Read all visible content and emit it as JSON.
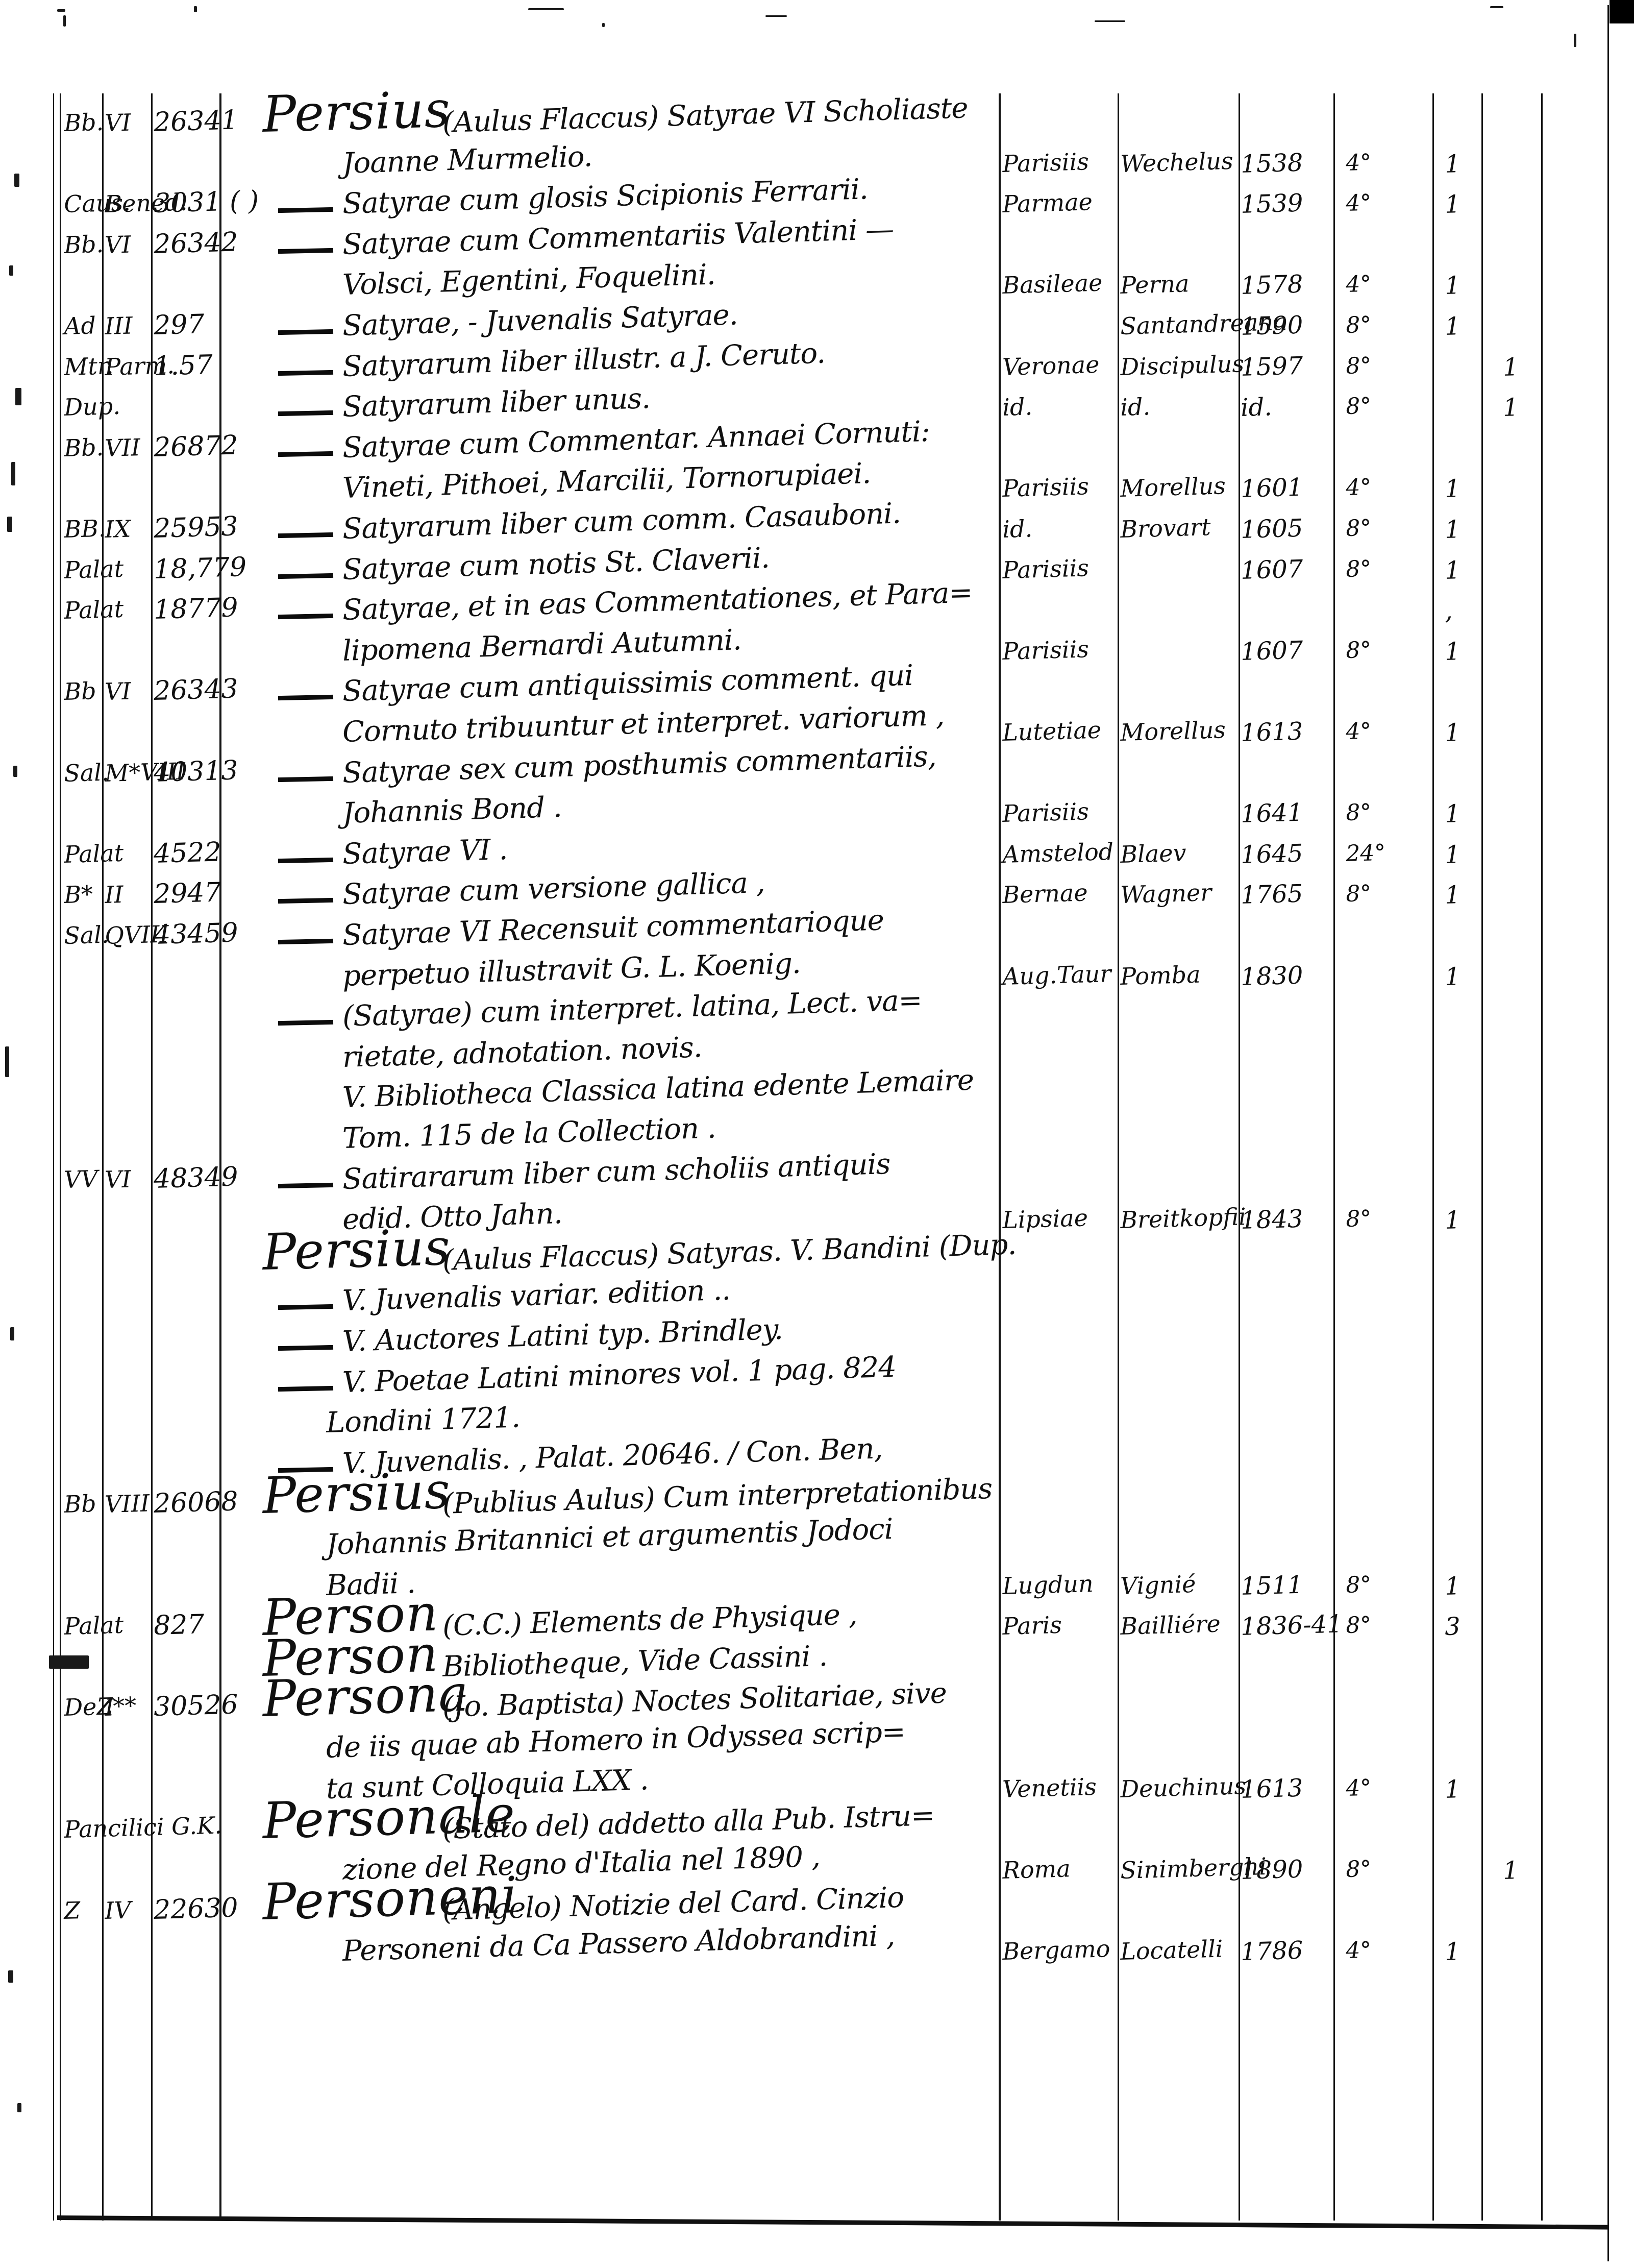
{
  "page": {
    "kind": "handwritten-library-catalog-scan",
    "ink_color": "#101010",
    "paper_color": "#ffffff",
    "rows": [
      {
        "head": "Persius",
        "title": "(Aulus Flaccus) Satyrae VI Scholiaste",
        "c1": "Bb.",
        "c2": "VI",
        "c3": "26341"
      },
      {
        "title": "Joanne Murmelio.",
        "place": "Parisiis",
        "pub": "Wechelus",
        "year": "1538",
        "fmt": "4°",
        "n1": "1"
      },
      {
        "title": "Satyrae cum glosis Scipionis Ferrarii.",
        "dash": true,
        "c1": "Caus.",
        "c2": "Bened.",
        "c3": "3031 ( )",
        "place": "Parmae",
        "year": "1539",
        "fmt": "4°",
        "n1": "1"
      },
      {
        "title": "Satyrae cum Commentariis Valentini —",
        "dash": true,
        "c1": "Bb.",
        "c2": "VI",
        "c3": "26342"
      },
      {
        "title": "Volsci, Egentini, Foquelini.",
        "place": "Basileae",
        "pub": "Perna",
        "year": "1578",
        "fmt": "4°",
        "n1": "1"
      },
      {
        "title": "Satyrae, - Juvenalis Satyrae.",
        "dash": true,
        "c1": "Ad",
        "c2": "III",
        "c3": "297",
        "pub": "Santandreana",
        "year": "1590",
        "fmt": "8°",
        "n1": "1"
      },
      {
        "title": "Satyrarum liber illustr. a J. Ceruto.",
        "dash": true,
        "c1": "Mtr.",
        "c2": "Parm.",
        "c3": "1.57",
        "place": "Veronae",
        "pub": "Discipulus",
        "year": "1597",
        "fmt": "8°",
        "n2": "1"
      },
      {
        "title": "Satyrarum liber unus.",
        "dash": true,
        "c1": "Dup.",
        "place": "id.",
        "pub": "id.",
        "year": "id.",
        "fmt": "8°",
        "n2": "1"
      },
      {
        "title": "Satyrae cum Commentar. Annaei Cornuti:",
        "dash": true,
        "c1": "Bb.",
        "c2": "VII",
        "c3": "26872"
      },
      {
        "title": "Vineti, Pithoei, Marcilii, Tornorupiaei.",
        "place": "Parisiis",
        "pub": "Morellus",
        "year": "1601",
        "fmt": "4°",
        "n1": "1"
      },
      {
        "title": "Satyrarum liber cum comm. Casauboni.",
        "dash": true,
        "c1": "BB.",
        "c2": "IX",
        "c3": "25953",
        "place": "id.",
        "pub": "Brovart",
        "year": "1605",
        "fmt": "8°",
        "n1": "1"
      },
      {
        "title": "Satyrae cum notis St. Claverii.",
        "dash": true,
        "c1": "Palat",
        "c3": "18,779",
        "place": "Parisiis",
        "year": "1607",
        "fmt": "8°",
        "n1": "1"
      },
      {
        "title": "Satyrae, et in eas Commentationes, et Para=",
        "dash": true,
        "c1": "Palat",
        "c3": "18779",
        "n1": ","
      },
      {
        "title": "lipomena Bernardi Autumni.",
        "place": "Parisiis",
        "year": "1607",
        "fmt": "8°",
        "n1": "1"
      },
      {
        "title": "Satyrae cum antiquissimis comment. qui",
        "dash": true,
        "c1": "Bb",
        "c2": "VI",
        "c3": "26343"
      },
      {
        "title": "Cornuto tribuuntur et interpret. variorum ,",
        "place": "Lutetiae",
        "pub": "Morellus",
        "year": "1613",
        "fmt": "4°",
        "n1": "1"
      },
      {
        "title": "Satyrae sex cum posthumis commentariis,",
        "dash": true,
        "c1": "Sal.",
        "c2": "M*VIII",
        "c3": "40313"
      },
      {
        "title": "Johannis Bond .",
        "place": "Parisiis",
        "year": "1641",
        "fmt": "8°",
        "n1": "1"
      },
      {
        "title": "Satyrae VI .",
        "dash": true,
        "c1": "Palat",
        "c3": "4522",
        "place": "Amstelod",
        "pub": "Blaev",
        "year": "1645",
        "fmt": "24°",
        "n1": "1"
      },
      {
        "title": "Satyrae cum versione gallica ,",
        "dash": true,
        "c1": "B*",
        "c2": "II",
        "c3": "2947",
        "place": "Bernae",
        "pub": "Wagner",
        "year": "1765",
        "fmt": "8°",
        "n1": "1"
      },
      {
        "title": "Satyrae VI Recensuit commentarioque",
        "dash": true,
        "c1": "Sal.",
        "c2": "QVIII",
        "c3": "43459"
      },
      {
        "title": "perpetuo illustravit G. L. Koenig.",
        "place": "Aug.Taur",
        "pub": "Pomba",
        "year": "1830",
        "n1": "1"
      },
      {
        "title": "(Satyrae) cum interpret. latina, Lect. va=",
        "dash": true
      },
      {
        "title": "rietate, adnotation. novis."
      },
      {
        "title": "V. Bibliotheca Classica latina edente Lemaire"
      },
      {
        "title": "Tom. 115 de la Collection ."
      },
      {
        "title": "Satirararum liber cum scholiis antiquis",
        "dash": true,
        "c1": "VV",
        "c2": "VI",
        "c3": "48349"
      },
      {
        "title": "edid. Otto Jahn.",
        "place": "Lipsiae",
        "pub": "Breitkopfii",
        "year": "1843",
        "fmt": "8°",
        "n1": "1"
      },
      {
        "head": "Persius",
        "title": "(Aulus Flaccus) Satyras.  V. Bandini (Dup."
      },
      {
        "title": "V. Juvenalis variar. edition ..",
        "dash": true
      },
      {
        "title": "V. Auctores Latini typ. Brindley.",
        "dash": true
      },
      {
        "title": "V. Poetae Latini minores vol. 1 pag. 824",
        "dash": true
      },
      {
        "title": "Londini 1721.",
        "deep": true
      },
      {
        "title": "V. Juvenalis. , Palat. 20646. / Con. Ben,",
        "dash": true
      },
      {
        "head": "Persius",
        "title": "(Publius Aulus) Cum interpretationibus",
        "c1": "Bb",
        "c2": "VIII",
        "c3": "26068"
      },
      {
        "title": "Johannis Britannici et argumentis Jodoci",
        "deep": true
      },
      {
        "title": "Badii .",
        "deep": true,
        "place": "Lugdun",
        "pub": "Vignié",
        "year": "1511",
        "fmt": "8°",
        "n1": "1"
      },
      {
        "head": "Person",
        "title": "(C.C.) Elements de Physique ,",
        "c1": "Palat",
        "c3": "827",
        "place": "Paris",
        "pub": "Bailliére",
        "year": "1836-41",
        "fmt": "8°",
        "n1": "3"
      },
      {
        "head": "Person",
        "title": "Bibliotheque, Vide Cassini ."
      },
      {
        "head": "Persona",
        "title": "(Jo. Baptista) Noctes Solitariae, sive",
        "c1": "DeZ**",
        "c2": "I",
        "c3": "30526"
      },
      {
        "title": "de iis quae ab Homero in Odyssea scrip=",
        "deep": true
      },
      {
        "title": "ta sunt Colloquia LXX .",
        "deep": true,
        "place": "Venetiis",
        "pub": "Deuchinus",
        "year": "1613",
        "fmt": "4°",
        "n1": "1"
      },
      {
        "head": "Personale",
        "title": "(Stato del) addetto alla Pub. Istru=",
        "c1": "Pancilici G.K."
      },
      {
        "title": "zione del Regno d'Italia nel 1890 ,",
        "place": "Roma",
        "pub": "Sinimberghi",
        "year": "1890",
        "fmt": "8°",
        "n2": "1"
      },
      {
        "head": "Personeni",
        "title": "(Angelo) Notizie del Card. Cinzio",
        "c1": "Z",
        "c2": "IV",
        "c3": "22630"
      },
      {
        "title": "Personeni da Ca Passero Aldobrandini ,",
        "place": "Bergamo",
        "pub": "Locatelli",
        "year": "1786",
        "fmt": "4°",
        "n1": "1"
      }
    ]
  }
}
